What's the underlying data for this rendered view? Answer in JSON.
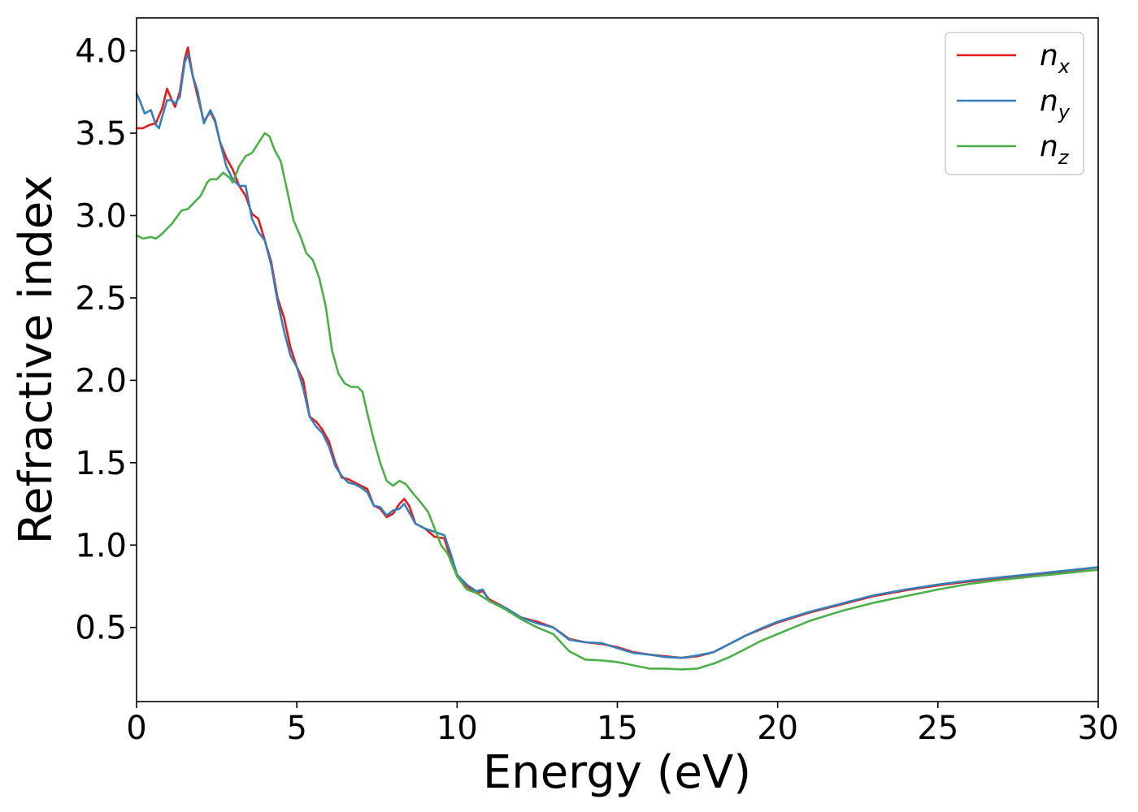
{
  "chart_data": {
    "type": "line",
    "xlabel": "Energy (eV)",
    "ylabel": "Refractive index",
    "xlim": [
      0,
      30
    ],
    "ylim": [
      0.05,
      4.2
    ],
    "xticks": [
      "0",
      "5",
      "10",
      "15",
      "20",
      "25",
      "30"
    ],
    "yticks": [
      "0.5",
      "1.0",
      "1.5",
      "2.0",
      "2.5",
      "3.0",
      "3.5",
      "4.0"
    ],
    "grid": false,
    "legend_position": "top-right",
    "series": [
      {
        "name": "n",
        "subscript": "x",
        "color": "#e41a1c",
        "points": [
          [
            0,
            3.53
          ],
          [
            0.2,
            3.53
          ],
          [
            0.4,
            3.55
          ],
          [
            0.6,
            3.56
          ],
          [
            0.8,
            3.65
          ],
          [
            0.95,
            3.77
          ],
          [
            1.1,
            3.7
          ],
          [
            1.2,
            3.66
          ],
          [
            1.35,
            3.75
          ],
          [
            1.5,
            3.95
          ],
          [
            1.6,
            4.02
          ],
          [
            1.75,
            3.85
          ],
          [
            1.9,
            3.73
          ],
          [
            2.1,
            3.57
          ],
          [
            2.3,
            3.63
          ],
          [
            2.45,
            3.57
          ],
          [
            2.6,
            3.45
          ],
          [
            2.8,
            3.35
          ],
          [
            3.0,
            3.28
          ],
          [
            3.2,
            3.18
          ],
          [
            3.4,
            3.12
          ],
          [
            3.6,
            3.01
          ],
          [
            3.8,
            2.98
          ],
          [
            4.0,
            2.85
          ],
          [
            4.2,
            2.72
          ],
          [
            4.4,
            2.5
          ],
          [
            4.6,
            2.38
          ],
          [
            4.8,
            2.2
          ],
          [
            5.0,
            2.08
          ],
          [
            5.2,
            2.0
          ],
          [
            5.4,
            1.78
          ],
          [
            5.6,
            1.75
          ],
          [
            5.8,
            1.7
          ],
          [
            6.0,
            1.63
          ],
          [
            6.2,
            1.5
          ],
          [
            6.4,
            1.41
          ],
          [
            6.6,
            1.4
          ],
          [
            6.8,
            1.38
          ],
          [
            7.0,
            1.36
          ],
          [
            7.2,
            1.34
          ],
          [
            7.4,
            1.24
          ],
          [
            7.6,
            1.22
          ],
          [
            7.8,
            1.17
          ],
          [
            8.0,
            1.19
          ],
          [
            8.2,
            1.25
          ],
          [
            8.35,
            1.28
          ],
          [
            8.5,
            1.24
          ],
          [
            8.7,
            1.13
          ],
          [
            9.0,
            1.1
          ],
          [
            9.3,
            1.05
          ],
          [
            9.6,
            1.04
          ],
          [
            9.8,
            0.92
          ],
          [
            10.0,
            0.81
          ],
          [
            10.3,
            0.75
          ],
          [
            10.6,
            0.71
          ],
          [
            10.8,
            0.72
          ],
          [
            11.0,
            0.67
          ],
          [
            11.5,
            0.62
          ],
          [
            12.0,
            0.56
          ],
          [
            12.5,
            0.535
          ],
          [
            13.0,
            0.5
          ],
          [
            13.5,
            0.43
          ],
          [
            14.0,
            0.41
          ],
          [
            14.5,
            0.4
          ],
          [
            15.0,
            0.38
          ],
          [
            15.5,
            0.35
          ],
          [
            16.0,
            0.335
          ],
          [
            16.5,
            0.325
          ],
          [
            17.0,
            0.315
          ],
          [
            17.5,
            0.325
          ],
          [
            18.0,
            0.35
          ],
          [
            18.5,
            0.4
          ],
          [
            19.0,
            0.45
          ],
          [
            19.5,
            0.49
          ],
          [
            20.0,
            0.53
          ],
          [
            21.0,
            0.59
          ],
          [
            22.0,
            0.64
          ],
          [
            23.0,
            0.69
          ],
          [
            24.0,
            0.725
          ],
          [
            25.0,
            0.755
          ],
          [
            26.0,
            0.78
          ],
          [
            27.0,
            0.8
          ],
          [
            28.0,
            0.82
          ],
          [
            29.0,
            0.84
          ],
          [
            30.0,
            0.865
          ]
        ]
      },
      {
        "name": "n",
        "subscript": "y",
        "color": "#377eb8",
        "points": [
          [
            0,
            3.74
          ],
          [
            0.1,
            3.7
          ],
          [
            0.25,
            3.62
          ],
          [
            0.45,
            3.64
          ],
          [
            0.6,
            3.55
          ],
          [
            0.7,
            3.53
          ],
          [
            0.8,
            3.6
          ],
          [
            0.95,
            3.7
          ],
          [
            1.1,
            3.7
          ],
          [
            1.2,
            3.68
          ],
          [
            1.35,
            3.72
          ],
          [
            1.5,
            3.93
          ],
          [
            1.6,
            3.98
          ],
          [
            1.75,
            3.85
          ],
          [
            1.9,
            3.76
          ],
          [
            2.1,
            3.56
          ],
          [
            2.3,
            3.64
          ],
          [
            2.45,
            3.58
          ],
          [
            2.6,
            3.45
          ],
          [
            2.8,
            3.3
          ],
          [
            3.0,
            3.22
          ],
          [
            3.2,
            3.18
          ],
          [
            3.4,
            3.18
          ],
          [
            3.6,
            2.98
          ],
          [
            3.8,
            2.9
          ],
          [
            4.0,
            2.85
          ],
          [
            4.2,
            2.7
          ],
          [
            4.4,
            2.48
          ],
          [
            4.6,
            2.3
          ],
          [
            4.8,
            2.15
          ],
          [
            5.0,
            2.08
          ],
          [
            5.2,
            1.95
          ],
          [
            5.4,
            1.78
          ],
          [
            5.6,
            1.72
          ],
          [
            5.8,
            1.68
          ],
          [
            6.0,
            1.6
          ],
          [
            6.2,
            1.48
          ],
          [
            6.4,
            1.42
          ],
          [
            6.6,
            1.38
          ],
          [
            6.8,
            1.37
          ],
          [
            7.0,
            1.35
          ],
          [
            7.2,
            1.32
          ],
          [
            7.4,
            1.24
          ],
          [
            7.6,
            1.23
          ],
          [
            7.8,
            1.18
          ],
          [
            8.0,
            1.21
          ],
          [
            8.2,
            1.22
          ],
          [
            8.35,
            1.25
          ],
          [
            8.5,
            1.2
          ],
          [
            8.7,
            1.13
          ],
          [
            9.0,
            1.1
          ],
          [
            9.3,
            1.08
          ],
          [
            9.6,
            1.06
          ],
          [
            9.8,
            0.95
          ],
          [
            10.0,
            0.82
          ],
          [
            10.3,
            0.76
          ],
          [
            10.6,
            0.72
          ],
          [
            10.8,
            0.73
          ],
          [
            11.0,
            0.66
          ],
          [
            11.5,
            0.62
          ],
          [
            12.0,
            0.56
          ],
          [
            12.5,
            0.525
          ],
          [
            13.0,
            0.5
          ],
          [
            13.5,
            0.425
          ],
          [
            14.0,
            0.41
          ],
          [
            14.5,
            0.405
          ],
          [
            15.0,
            0.375
          ],
          [
            15.5,
            0.345
          ],
          [
            16.0,
            0.335
          ],
          [
            16.5,
            0.32
          ],
          [
            17.0,
            0.315
          ],
          [
            17.5,
            0.33
          ],
          [
            18.0,
            0.35
          ],
          [
            18.5,
            0.4
          ],
          [
            19.0,
            0.45
          ],
          [
            19.5,
            0.495
          ],
          [
            20.0,
            0.535
          ],
          [
            21.0,
            0.595
          ],
          [
            22.0,
            0.645
          ],
          [
            23.0,
            0.695
          ],
          [
            24.0,
            0.73
          ],
          [
            25.0,
            0.76
          ],
          [
            26.0,
            0.785
          ],
          [
            27.0,
            0.805
          ],
          [
            28.0,
            0.825
          ],
          [
            29.0,
            0.845
          ],
          [
            30.0,
            0.865
          ]
        ]
      },
      {
        "name": "n",
        "subscript": "z",
        "color": "#4daf4a",
        "points": [
          [
            0,
            2.88
          ],
          [
            0.2,
            2.86
          ],
          [
            0.45,
            2.87
          ],
          [
            0.6,
            2.86
          ],
          [
            0.8,
            2.89
          ],
          [
            1.1,
            2.95
          ],
          [
            1.4,
            3.03
          ],
          [
            1.6,
            3.04
          ],
          [
            1.8,
            3.08
          ],
          [
            2.0,
            3.12
          ],
          [
            2.2,
            3.2
          ],
          [
            2.3,
            3.22
          ],
          [
            2.5,
            3.22
          ],
          [
            2.7,
            3.26
          ],
          [
            2.9,
            3.23
          ],
          [
            3.0,
            3.2
          ],
          [
            3.2,
            3.3
          ],
          [
            3.4,
            3.36
          ],
          [
            3.6,
            3.38
          ],
          [
            3.8,
            3.44
          ],
          [
            4.0,
            3.5
          ],
          [
            4.15,
            3.48
          ],
          [
            4.3,
            3.4
          ],
          [
            4.5,
            3.33
          ],
          [
            4.7,
            3.15
          ],
          [
            4.9,
            2.97
          ],
          [
            5.1,
            2.88
          ],
          [
            5.3,
            2.77
          ],
          [
            5.5,
            2.73
          ],
          [
            5.7,
            2.62
          ],
          [
            5.9,
            2.45
          ],
          [
            6.1,
            2.18
          ],
          [
            6.3,
            2.04
          ],
          [
            6.5,
            1.98
          ],
          [
            6.7,
            1.96
          ],
          [
            6.9,
            1.96
          ],
          [
            7.05,
            1.93
          ],
          [
            7.2,
            1.8
          ],
          [
            7.4,
            1.64
          ],
          [
            7.6,
            1.5
          ],
          [
            7.8,
            1.39
          ],
          [
            8.0,
            1.36
          ],
          [
            8.2,
            1.39
          ],
          [
            8.4,
            1.37
          ],
          [
            8.6,
            1.32
          ],
          [
            8.9,
            1.25
          ],
          [
            9.1,
            1.2
          ],
          [
            9.3,
            1.1
          ],
          [
            9.5,
            1.0
          ],
          [
            9.7,
            0.95
          ],
          [
            10.0,
            0.81
          ],
          [
            10.3,
            0.73
          ],
          [
            10.6,
            0.71
          ],
          [
            11.0,
            0.66
          ],
          [
            11.5,
            0.61
          ],
          [
            12.0,
            0.55
          ],
          [
            12.5,
            0.5
          ],
          [
            13.0,
            0.46
          ],
          [
            13.5,
            0.355
          ],
          [
            14.0,
            0.305
          ],
          [
            14.5,
            0.3
          ],
          [
            15.0,
            0.29
          ],
          [
            15.5,
            0.27
          ],
          [
            16.0,
            0.25
          ],
          [
            16.5,
            0.25
          ],
          [
            17.0,
            0.245
          ],
          [
            17.5,
            0.25
          ],
          [
            18.0,
            0.28
          ],
          [
            18.5,
            0.32
          ],
          [
            19.0,
            0.37
          ],
          [
            19.5,
            0.42
          ],
          [
            20.0,
            0.46
          ],
          [
            21.0,
            0.54
          ],
          [
            22.0,
            0.6
          ],
          [
            23.0,
            0.65
          ],
          [
            24.0,
            0.69
          ],
          [
            25.0,
            0.73
          ],
          [
            26.0,
            0.765
          ],
          [
            27.0,
            0.79
          ],
          [
            28.0,
            0.81
          ],
          [
            29.0,
            0.83
          ],
          [
            30.0,
            0.85
          ]
        ]
      }
    ]
  }
}
